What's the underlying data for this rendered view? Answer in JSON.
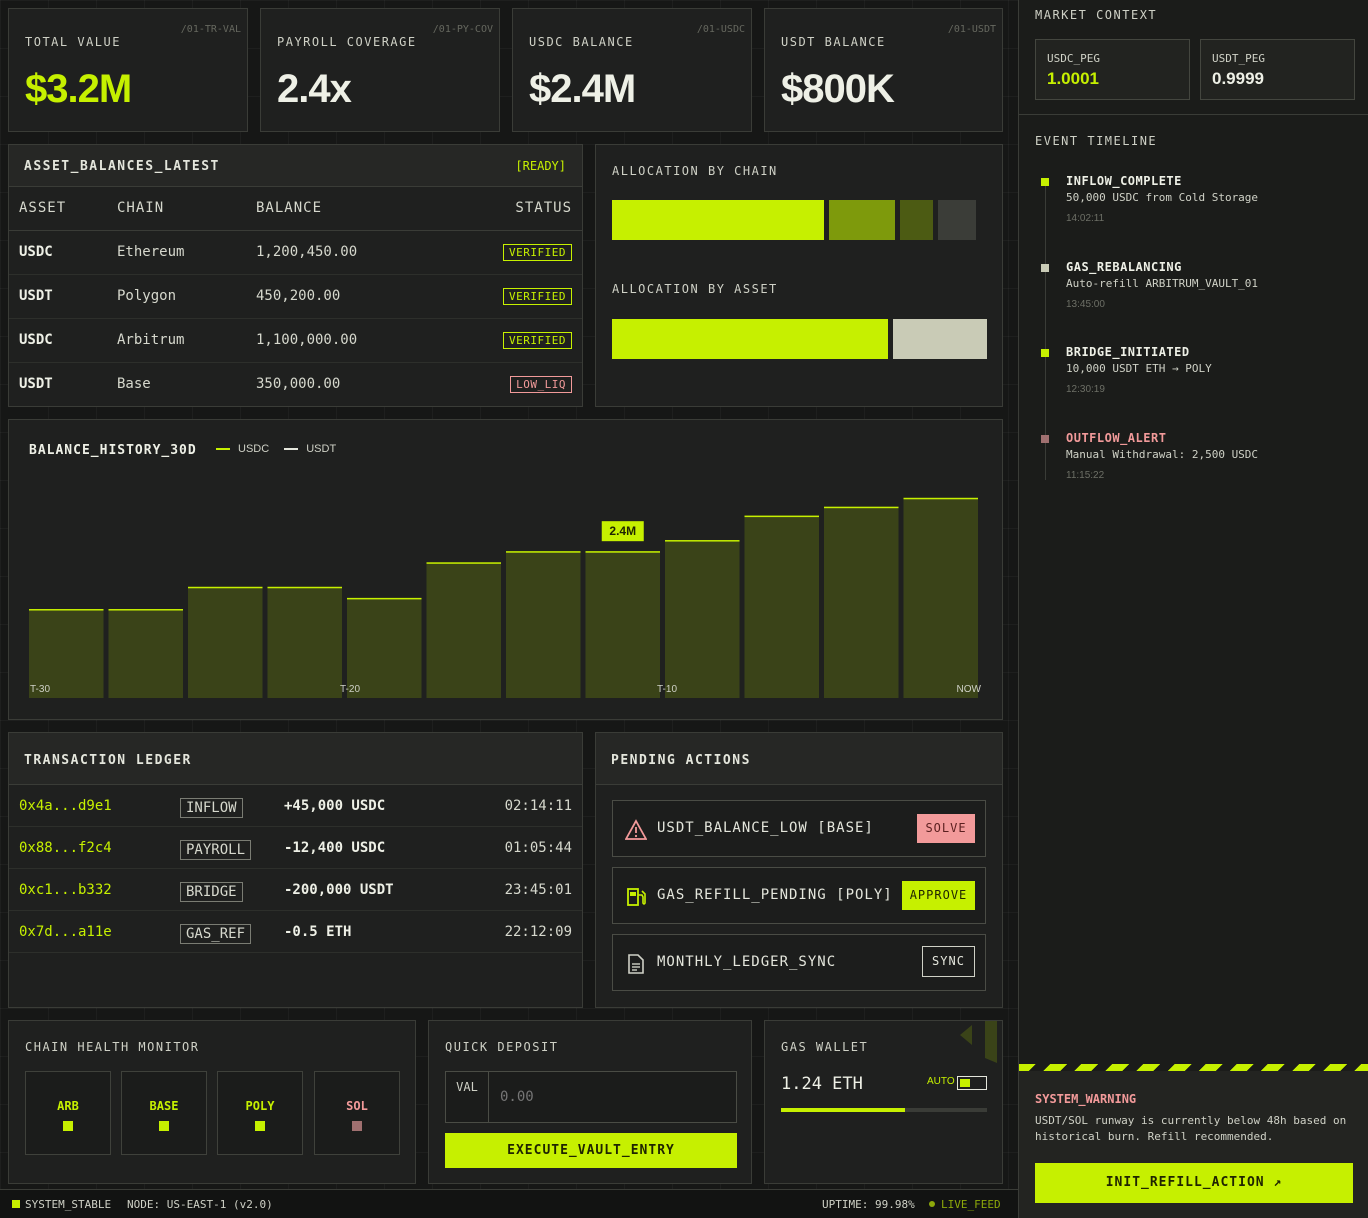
{
  "kpis": [
    {
      "label": "TOTAL VALUE",
      "code": "/01-TR-VAL",
      "value": "$3.2M"
    },
    {
      "label": "PAYROLL COVERAGE",
      "code": "/01-PY-COV",
      "value": "2.4x"
    },
    {
      "label": "USDC BALANCE",
      "code": "/01-USDC",
      "value": "$2.4M"
    },
    {
      "label": "USDT BALANCE",
      "code": "/01-USDT",
      "value": "$800K"
    }
  ],
  "assets": {
    "title": "ASSET_BALANCES_LATEST",
    "state": "[READY]",
    "columns": [
      "ASSET",
      "CHAIN",
      "BALANCE",
      "STATUS"
    ],
    "rows": [
      {
        "asset": "USDC",
        "chain": "Ethereum",
        "balance": "1,200,450.00",
        "status": "VERIFIED"
      },
      {
        "asset": "USDT",
        "chain": "Polygon",
        "balance": "450,200.00",
        "status": "VERIFIED"
      },
      {
        "asset": "USDC",
        "chain": "Arbitrum",
        "balance": "1,100,000.00",
        "status": "VERIFIED"
      },
      {
        "asset": "USDT",
        "chain": "Base",
        "balance": "350,000.00",
        "status": "LOW_LIQ"
      }
    ]
  },
  "allocation": {
    "by_chain_label": "ALLOCATION BY CHAIN",
    "by_chain": [
      0.58,
      0.19,
      0.1,
      0.1
    ],
    "by_asset_label": "ALLOCATION BY ASSET",
    "by_asset": [
      0.75,
      0.25
    ],
    "colors": [
      "#c6f000",
      "#7e9a0c",
      "#4c5b13",
      "#3b3d38"
    ],
    "asset_colors": [
      "#c6f000",
      "#c9cbb6"
    ]
  },
  "chart_data": {
    "type": "bar",
    "title": "BALANCE_HISTORY_30D",
    "legend": [
      "USDC",
      "USDT"
    ],
    "tick_labels": [
      "T-30",
      "T-20",
      "T-10",
      "NOW"
    ],
    "values": [
      2.0,
      2.0,
      2.5,
      2.5,
      2.25,
      3.05,
      3.3,
      3.3,
      3.55,
      4.1,
      4.3,
      4.5
    ],
    "ylim": [
      0,
      4.9
    ],
    "highlight_index": 7,
    "highlight_label": "2.4M",
    "colors": {
      "bar": "#3a4318",
      "top": "#c6f000"
    }
  },
  "ledger": {
    "title": "TRANSACTION LEDGER",
    "rows": [
      {
        "hash": "0x4a...d9e1",
        "type": "INFLOW",
        "amount": "+45,000 USDC",
        "time": "02:14:11"
      },
      {
        "hash": "0x88...f2c4",
        "type": "PAYROLL",
        "amount": "-12,400 USDC",
        "time": "01:05:44"
      },
      {
        "hash": "0xc1...b332",
        "type": "BRIDGE",
        "amount": "-200,000 USDT",
        "time": "23:45:01"
      },
      {
        "hash": "0x7d...a11e",
        "type": "GAS_REF",
        "amount": "-0.5 ETH",
        "time": "22:12:09"
      }
    ]
  },
  "pending": {
    "title": "PENDING ACTIONS",
    "items": [
      {
        "icon": "warning-icon",
        "label": "USDT_BALANCE_LOW [BASE]",
        "button": "SOLVE"
      },
      {
        "icon": "fuel-icon",
        "label": "GAS_REFILL_PENDING [POLY]",
        "button": "APPROVE"
      },
      {
        "icon": "document-icon",
        "label": "MONTHLY_LEDGER_SYNC",
        "button": "SYNC"
      }
    ]
  },
  "chain_health": {
    "title": "CHAIN HEALTH MONITOR",
    "chains": [
      {
        "name": "ARB",
        "status": "ok"
      },
      {
        "name": "BASE",
        "status": "ok"
      },
      {
        "name": "POLY",
        "status": "ok"
      },
      {
        "name": "SOL",
        "status": "warn"
      }
    ]
  },
  "deposit": {
    "title": "QUICK DEPOSIT",
    "prefix": "VAL",
    "placeholder": "0.00",
    "button": "EXECUTE_VAULT_ENTRY"
  },
  "gas": {
    "title": "GAS WALLET",
    "value": "1.24 ETH",
    "auto_label": "AUTO",
    "level": 0.6
  },
  "market": {
    "title": "MARKET CONTEXT",
    "pegs": [
      {
        "key": "USDC_PEG",
        "value": "1.0001"
      },
      {
        "key": "USDT_PEG",
        "value": "0.9999"
      }
    ]
  },
  "timeline": {
    "title": "EVENT TIMELINE",
    "events": [
      {
        "title": "INFLOW_COMPLETE",
        "desc": "50,000 USDC from Cold Storage",
        "time": "14:02:11",
        "color": "#c6f000"
      },
      {
        "title": "GAS_REBALANCING",
        "desc": "Auto-refill ARBITRUM_VAULT_01",
        "time": "13:45:00",
        "color": "#c9cbb6"
      },
      {
        "title": "BRIDGE_INITIATED",
        "desc": "10,000 USDT ETH → POLY",
        "time": "12:30:19",
        "color": "#c6f000"
      },
      {
        "title": "OUTFLOW_ALERT",
        "desc": "Manual Withdrawal: 2,500 USDC",
        "time": "11:15:22",
        "color": "#a07070"
      }
    ]
  },
  "warning": {
    "title": "SYSTEM_WARNING",
    "text": "USDT/SOL runway is currently below 48h based on historical burn. Refill recommended.",
    "button": "INIT_REFILL_ACTION ↗"
  },
  "footer": {
    "status": "SYSTEM_STABLE",
    "node": "NODE: US-EAST-1 (v2.0)",
    "uptime": "UPTIME: 99.98%",
    "feed": "LIVE_FEED"
  }
}
